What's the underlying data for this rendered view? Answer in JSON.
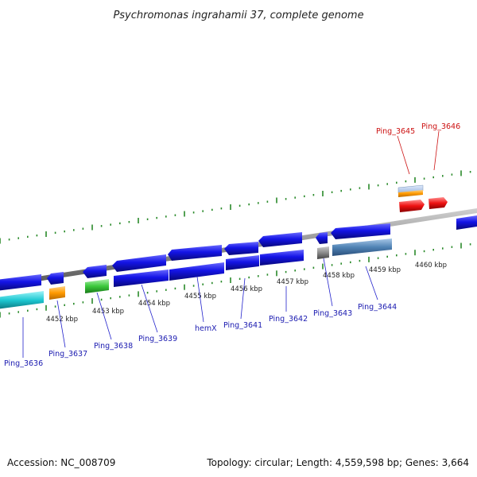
{
  "title": "Psychromonas ingrahamii 37, complete genome",
  "footer": {
    "accession": "Accession: NC_008709",
    "summary": "Topology: circular; Length: 4,559,598 bp; Genes: 3,664"
  },
  "scale_labels": [
    "4452 kbp",
    "4453 kbp",
    "4454 kbp",
    "4455 kbp",
    "4456 kbp",
    "4457 kbp",
    "4458 kbp",
    "4459 kbp",
    "4460 kbp"
  ],
  "gene_labels": {
    "forward": [
      "Ping_3645",
      "Ping_3646"
    ],
    "reverse": [
      "Ping_3636",
      "Ping_3637",
      "Ping_3638",
      "Ping_3639",
      "hemX",
      "Ping_3641",
      "Ping_3642",
      "Ping_3643",
      "Ping_3644"
    ]
  },
  "colors": {
    "cds": "#1414e6",
    "cds_alt": "#4f82b4",
    "cyan": "#1ec8d2",
    "green": "#3cc83c",
    "orange": "#ff9a00",
    "gray": "#8a8a8a",
    "red": "#ee1111",
    "backbone": "#8c8c8c",
    "ticks": "#2a8a2a",
    "label_blue": "#1a1ab0",
    "label_red": "#cc1111"
  }
}
